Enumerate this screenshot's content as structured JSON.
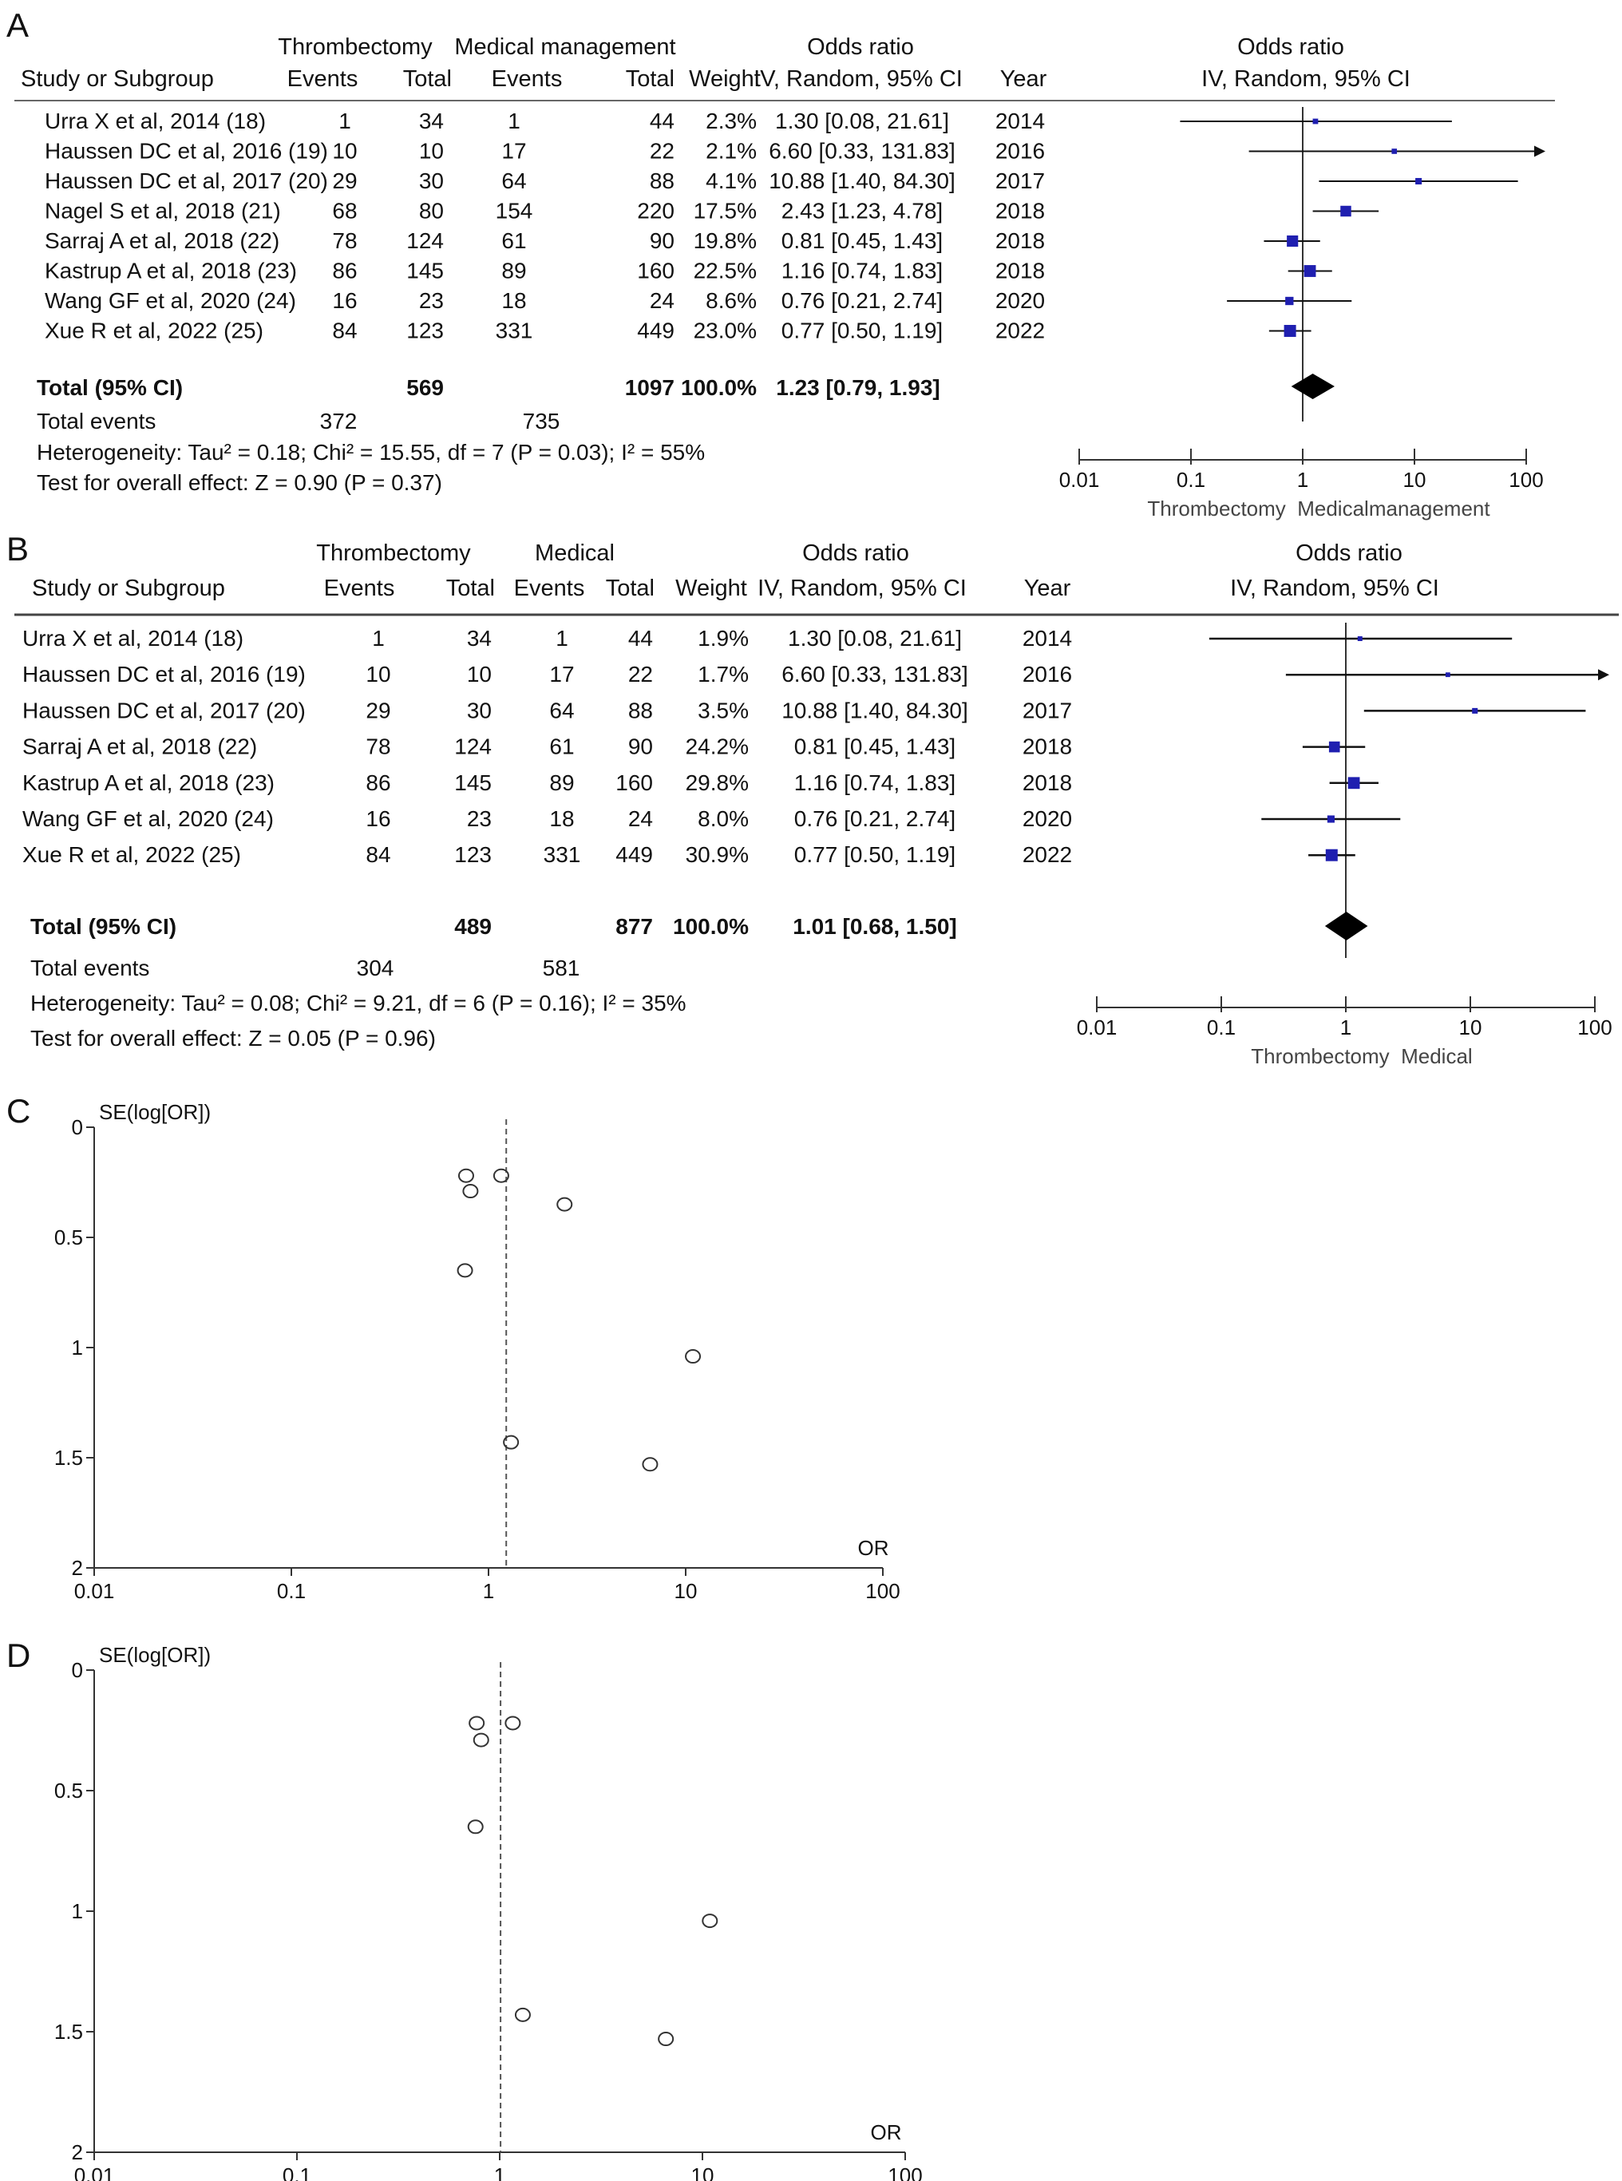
{
  "panels": [
    {
      "letter": "A",
      "header": {
        "group1": "Thrombectomy",
        "group2": "Medical management",
        "study_col": "Study or Subgroup",
        "events": "Events",
        "total": "Total",
        "weight": "Weight",
        "or_title": "Odds ratio",
        "or_method": "IV, Random, 95% CI",
        "year": "Year",
        "plot_title": "Odds ratio",
        "plot_method": "IV, Random, 95% CI"
      },
      "studies": [
        {
          "study": "Urra X et al, 2014 (18)",
          "e1": "1",
          "t1": "34",
          "e2": "1",
          "t2": "44",
          "weight": "2.3%",
          "ci_text": "1.30 [0.08, 21.61]",
          "year": "2014",
          "or": 1.3,
          "lo": 0.08,
          "hi": 21.61
        },
        {
          "study": "Haussen DC et al, 2016 (19)",
          "e1": "10",
          "t1": "10",
          "e2": "17",
          "t2": "22",
          "weight": "2.1%",
          "ci_text": "6.60 [0.33, 131.83]",
          "year": "2016",
          "or": 6.6,
          "lo": 0.33,
          "hi": 131.83
        },
        {
          "study": "Haussen DC et al, 2017 (20)",
          "e1": "29",
          "t1": "30",
          "e2": "64",
          "t2": "88",
          "weight": "4.1%",
          "ci_text": "10.88 [1.40, 84.30]",
          "year": "2017",
          "or": 10.88,
          "lo": 1.4,
          "hi": 84.3
        },
        {
          "study": "Nagel S et al, 2018 (21)",
          "e1": "68",
          "t1": "80",
          "e2": "154",
          "t2": "220",
          "weight": "17.5%",
          "ci_text": "2.43 [1.23, 4.78]",
          "year": "2018",
          "or": 2.43,
          "lo": 1.23,
          "hi": 4.78
        },
        {
          "study": "Sarraj A et al, 2018 (22)",
          "e1": "78",
          "t1": "124",
          "e2": "61",
          "t2": "90",
          "weight": "19.8%",
          "ci_text": "0.81 [0.45, 1.43]",
          "year": "2018",
          "or": 0.81,
          "lo": 0.45,
          "hi": 1.43
        },
        {
          "study": "Kastrup A et al, 2018 (23)",
          "e1": "86",
          "t1": "145",
          "e2": "89",
          "t2": "160",
          "weight": "22.5%",
          "ci_text": "1.16 [0.74, 1.83]",
          "year": "2018",
          "or": 1.16,
          "lo": 0.74,
          "hi": 1.83
        },
        {
          "study": "Wang GF et al, 2020 (24)",
          "e1": "16",
          "t1": "23",
          "e2": "18",
          "t2": "24",
          "weight": "8.6%",
          "ci_text": "0.76 [0.21, 2.74]",
          "year": "2020",
          "or": 0.76,
          "lo": 0.21,
          "hi": 2.74
        },
        {
          "study": "Xue R et al, 2022 (25)",
          "e1": "84",
          "t1": "123",
          "e2": "331",
          "t2": "449",
          "weight": "23.0%",
          "ci_text": "0.77 [0.50, 1.19]",
          "year": "2022",
          "or": 0.77,
          "lo": 0.5,
          "hi": 1.19
        }
      ],
      "total": {
        "label": "Total (95% CI)",
        "t1": "569",
        "t2": "1097",
        "weight": "100.0%",
        "ci_text": "1.23 [0.79, 1.93]",
        "or": 1.23,
        "lo": 0.79,
        "hi": 1.93
      },
      "total_events": {
        "label": "Total events",
        "e1": "372",
        "e2": "735"
      },
      "heterogeneity": "Heterogeneity: Tau² = 0.18; Chi² = 15.55, df = 7 (P = 0.03); I² = 55%",
      "overall_effect": "Test for overall effect: Z = 0.90 (P = 0.37)",
      "axis_ticks": [
        "0.01",
        "0.1",
        "1",
        "10",
        "100"
      ],
      "favours": "Thrombectomy  Medicalmanagement"
    },
    {
      "letter": "B",
      "header": {
        "group1": "Thrombectomy",
        "group2": "Medical",
        "study_col": "Study or Subgroup",
        "events": "Events",
        "total": "Total",
        "weight": "Weight",
        "or_title": "Odds ratio",
        "or_method": "IV, Random, 95% CI",
        "year": "Year",
        "plot_title": "Odds ratio",
        "plot_method": "IV, Random, 95% CI"
      },
      "studies": [
        {
          "study": "Urra X et al, 2014 (18)",
          "e1": "1",
          "t1": "34",
          "e2": "1",
          "t2": "44",
          "weight": "1.9%",
          "ci_text": "1.30 [0.08, 21.61]",
          "year": "2014",
          "or": 1.3,
          "lo": 0.08,
          "hi": 21.61
        },
        {
          "study": "Haussen DC et al, 2016 (19)",
          "e1": "10",
          "t1": "10",
          "e2": "17",
          "t2": "22",
          "weight": "1.7%",
          "ci_text": "6.60 [0.33, 131.83]",
          "year": "2016",
          "or": 6.6,
          "lo": 0.33,
          "hi": 131.83
        },
        {
          "study": "Haussen DC et al, 2017 (20)",
          "e1": "29",
          "t1": "30",
          "e2": "64",
          "t2": "88",
          "weight": "3.5%",
          "ci_text": "10.88 [1.40, 84.30]",
          "year": "2017",
          "or": 10.88,
          "lo": 1.4,
          "hi": 84.3
        },
        {
          "study": "Sarraj A et al, 2018 (22)",
          "e1": "78",
          "t1": "124",
          "e2": "61",
          "t2": "90",
          "weight": "24.2%",
          "ci_text": "0.81 [0.45, 1.43]",
          "year": "2018",
          "or": 0.81,
          "lo": 0.45,
          "hi": 1.43
        },
        {
          "study": "Kastrup A et al, 2018 (23)",
          "e1": "86",
          "t1": "145",
          "e2": "89",
          "t2": "160",
          "weight": "29.8%",
          "ci_text": "1.16 [0.74, 1.83]",
          "year": "2018",
          "or": 1.16,
          "lo": 0.74,
          "hi": 1.83
        },
        {
          "study": "Wang GF et al, 2020 (24)",
          "e1": "16",
          "t1": "23",
          "e2": "18",
          "t2": "24",
          "weight": "8.0%",
          "ci_text": "0.76 [0.21, 2.74]",
          "year": "2020",
          "or": 0.76,
          "lo": 0.21,
          "hi": 2.74
        },
        {
          "study": "Xue R et al, 2022 (25)",
          "e1": "84",
          "t1": "123",
          "e2": "331",
          "t2": "449",
          "weight": "30.9%",
          "ci_text": "0.77 [0.50, 1.19]",
          "year": "2022",
          "or": 0.77,
          "lo": 0.5,
          "hi": 1.19
        }
      ],
      "total": {
        "label": "Total (95% CI)",
        "t1": "489",
        "t2": "877",
        "weight": "100.0%",
        "ci_text": "1.01 [0.68, 1.50]",
        "or": 1.01,
        "lo": 0.68,
        "hi": 1.5
      },
      "total_events": {
        "label": "Total events",
        "e1": "304",
        "e2": "581"
      },
      "heterogeneity": "Heterogeneity: Tau² = 0.08; Chi² = 9.21, df = 6 (P = 0.16); I² = 35%",
      "overall_effect": "Test for overall effect: Z = 0.05 (P = 0.96)",
      "axis_ticks": [
        "0.01",
        "0.1",
        "1",
        "10",
        "100"
      ],
      "favours": "Thrombectomy  Medical"
    }
  ],
  "chart_data": [
    {
      "type": "scatter",
      "panel": "C",
      "ylabel": "SE(log[OR])",
      "xlabel": "OR",
      "x_scale": "log",
      "xlim": [
        0.01,
        100
      ],
      "ylim": [
        0,
        2
      ],
      "y_reversed": true,
      "x_ticks": [
        "0.01",
        "0.1",
        "1",
        "10",
        "100"
      ],
      "y_ticks": [
        "0",
        "0.5",
        "1",
        "1.5",
        "2"
      ],
      "summary_or": 1.23,
      "points": [
        {
          "x": 0.77,
          "y": 0.22
        },
        {
          "x": 1.16,
          "y": 0.22
        },
        {
          "x": 0.81,
          "y": 0.29
        },
        {
          "x": 2.43,
          "y": 0.35
        },
        {
          "x": 0.76,
          "y": 0.65
        },
        {
          "x": 10.88,
          "y": 1.04
        },
        {
          "x": 1.3,
          "y": 1.43
        },
        {
          "x": 6.6,
          "y": 1.53
        }
      ]
    },
    {
      "type": "scatter",
      "panel": "D",
      "ylabel": "SE(log[OR])",
      "xlabel": "OR",
      "x_scale": "log",
      "xlim": [
        0.01,
        100
      ],
      "ylim": [
        0,
        2
      ],
      "y_reversed": true,
      "x_ticks": [
        "0.01",
        "0.1",
        "1",
        "10",
        "100"
      ],
      "y_ticks": [
        "0",
        "0.5",
        "1",
        "1.5",
        "2"
      ],
      "summary_or": 1.01,
      "points": [
        {
          "x": 0.77,
          "y": 0.22
        },
        {
          "x": 1.16,
          "y": 0.22
        },
        {
          "x": 0.81,
          "y": 0.29
        },
        {
          "x": 0.76,
          "y": 0.65
        },
        {
          "x": 10.88,
          "y": 1.04
        },
        {
          "x": 1.3,
          "y": 1.43
        },
        {
          "x": 6.6,
          "y": 1.53
        }
      ]
    }
  ]
}
